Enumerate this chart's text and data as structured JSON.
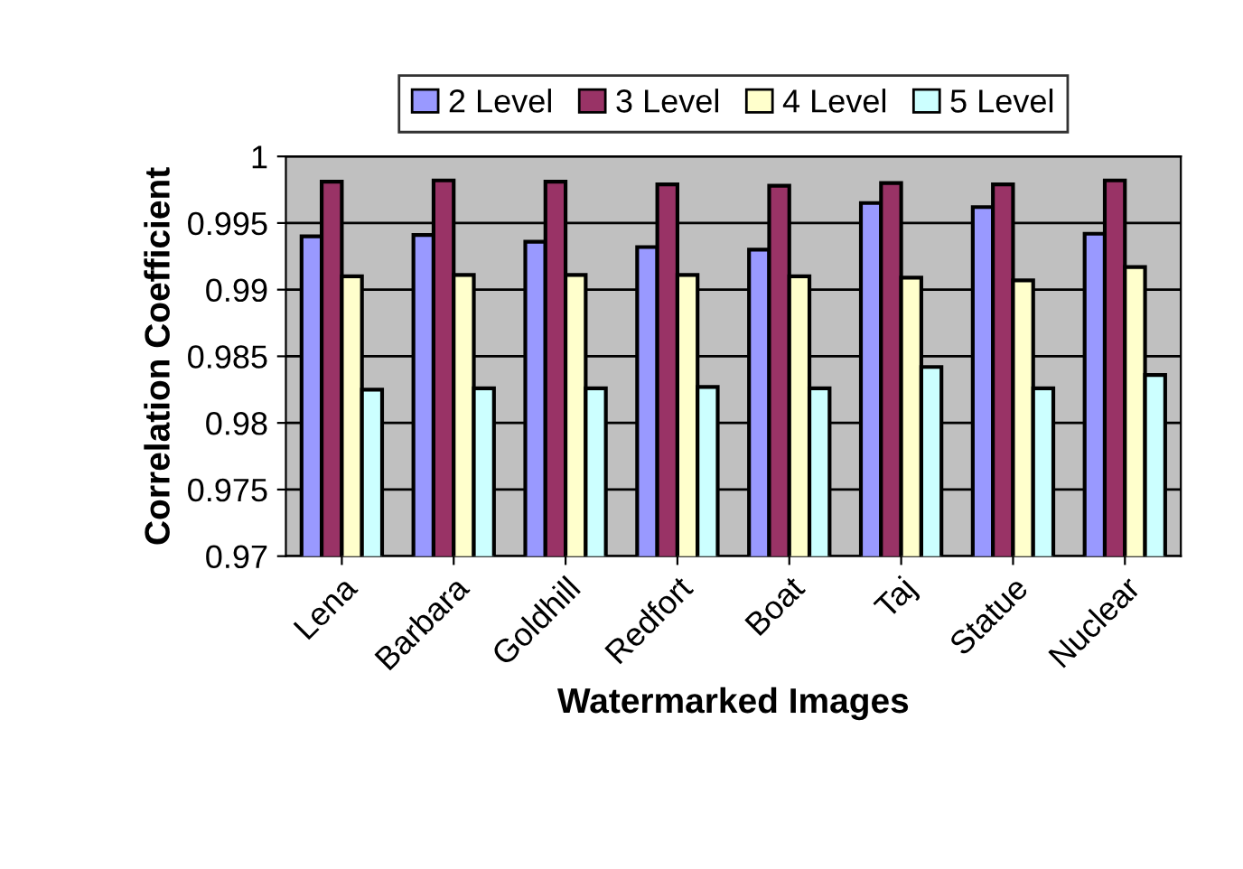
{
  "chart_data": {
    "type": "bar",
    "xlabel": "Watermarked Images",
    "ylabel": "Correlation Coefficient",
    "categories": [
      "Lena",
      "Barbara",
      "Goldhill",
      "Redfort",
      "Boat",
      "Taj",
      "Statue",
      "Nuclear"
    ],
    "series": [
      {
        "name": "2 Level",
        "color": "#9999ff",
        "values": [
          0.994,
          0.9941,
          0.9936,
          0.9932,
          0.993,
          0.9965,
          0.9962,
          0.9942
        ]
      },
      {
        "name": "3 Level",
        "color": "#993366",
        "values": [
          0.9981,
          0.9982,
          0.9981,
          0.9979,
          0.9978,
          0.998,
          0.9979,
          0.9982
        ]
      },
      {
        "name": "4 Level",
        "color": "#ffffcc",
        "values": [
          0.991,
          0.9911,
          0.9911,
          0.9911,
          0.991,
          0.9909,
          0.9907,
          0.9917
        ]
      },
      {
        "name": "5 Level",
        "color": "#ccffff",
        "values": [
          0.9825,
          0.9826,
          0.9826,
          0.9827,
          0.9826,
          0.9842,
          0.9826,
          0.9836
        ]
      }
    ],
    "ylim": [
      0.97,
      1
    ],
    "yticks": [
      0.97,
      0.975,
      0.98,
      0.985,
      0.99,
      0.995,
      1
    ],
    "grid": "y",
    "legend": "top"
  }
}
